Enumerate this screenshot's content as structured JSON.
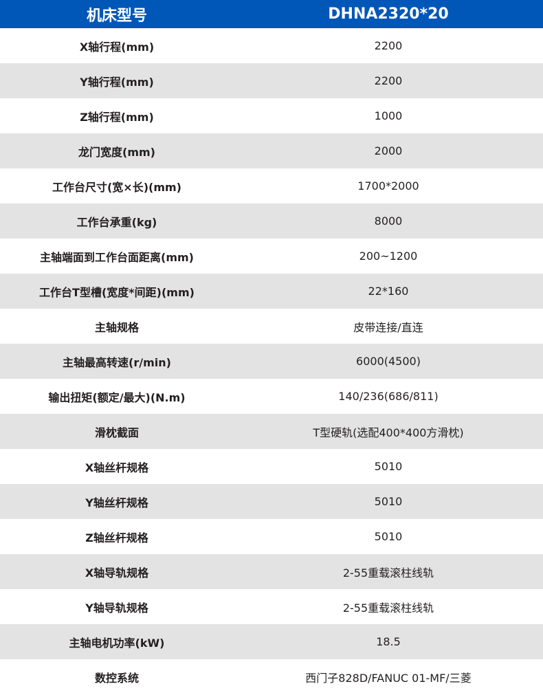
{
  "header": {
    "label": "机床型号",
    "value": "DHNA2320*20"
  },
  "colors": {
    "header_bg": "#0057b8",
    "stripe": "#e3e3e3"
  },
  "rows": [
    {
      "label": "X轴行程(mm)",
      "value": "2200"
    },
    {
      "label": "Y轴行程(mm)",
      "value": "2200"
    },
    {
      "label": "Z轴行程(mm)",
      "value": "1000"
    },
    {
      "label": "龙门宽度(mm)",
      "value": "2000"
    },
    {
      "label": "工作台尺寸(宽×长)(mm)",
      "value": "1700*2000"
    },
    {
      "label": "工作台承重(kg)",
      "value": "8000"
    },
    {
      "label": "主轴端面到工作台面距离(mm)",
      "value": "200~1200"
    },
    {
      "label": "工作台T型槽(宽度*间距)(mm)",
      "value": "22*160"
    },
    {
      "label": "主轴规格",
      "value": "皮带连接/直连"
    },
    {
      "label": "主轴最高转速(r/min)",
      "value": "6000(4500)"
    },
    {
      "label": "输出扭矩(额定/最大)(N.m)",
      "value": "140/236(686/811)"
    },
    {
      "label": "滑枕截面",
      "value": "T型硬轨(选配400*400方滑枕)"
    },
    {
      "label": "X轴丝杆规格",
      "value": "5010"
    },
    {
      "label": "Y轴丝杆规格",
      "value": "5010"
    },
    {
      "label": "Z轴丝杆规格",
      "value": "5010"
    },
    {
      "label": "X轴导轨规格",
      "value": "2-55重载滚柱线轨"
    },
    {
      "label": "Y轴导轨规格",
      "value": "2-55重载滚柱线轨"
    },
    {
      "label": "主轴电机功率(kW)",
      "value": "18.5"
    },
    {
      "label": "数控系统",
      "value": "西门子828D/FANUC 01-MF/三菱"
    }
  ]
}
